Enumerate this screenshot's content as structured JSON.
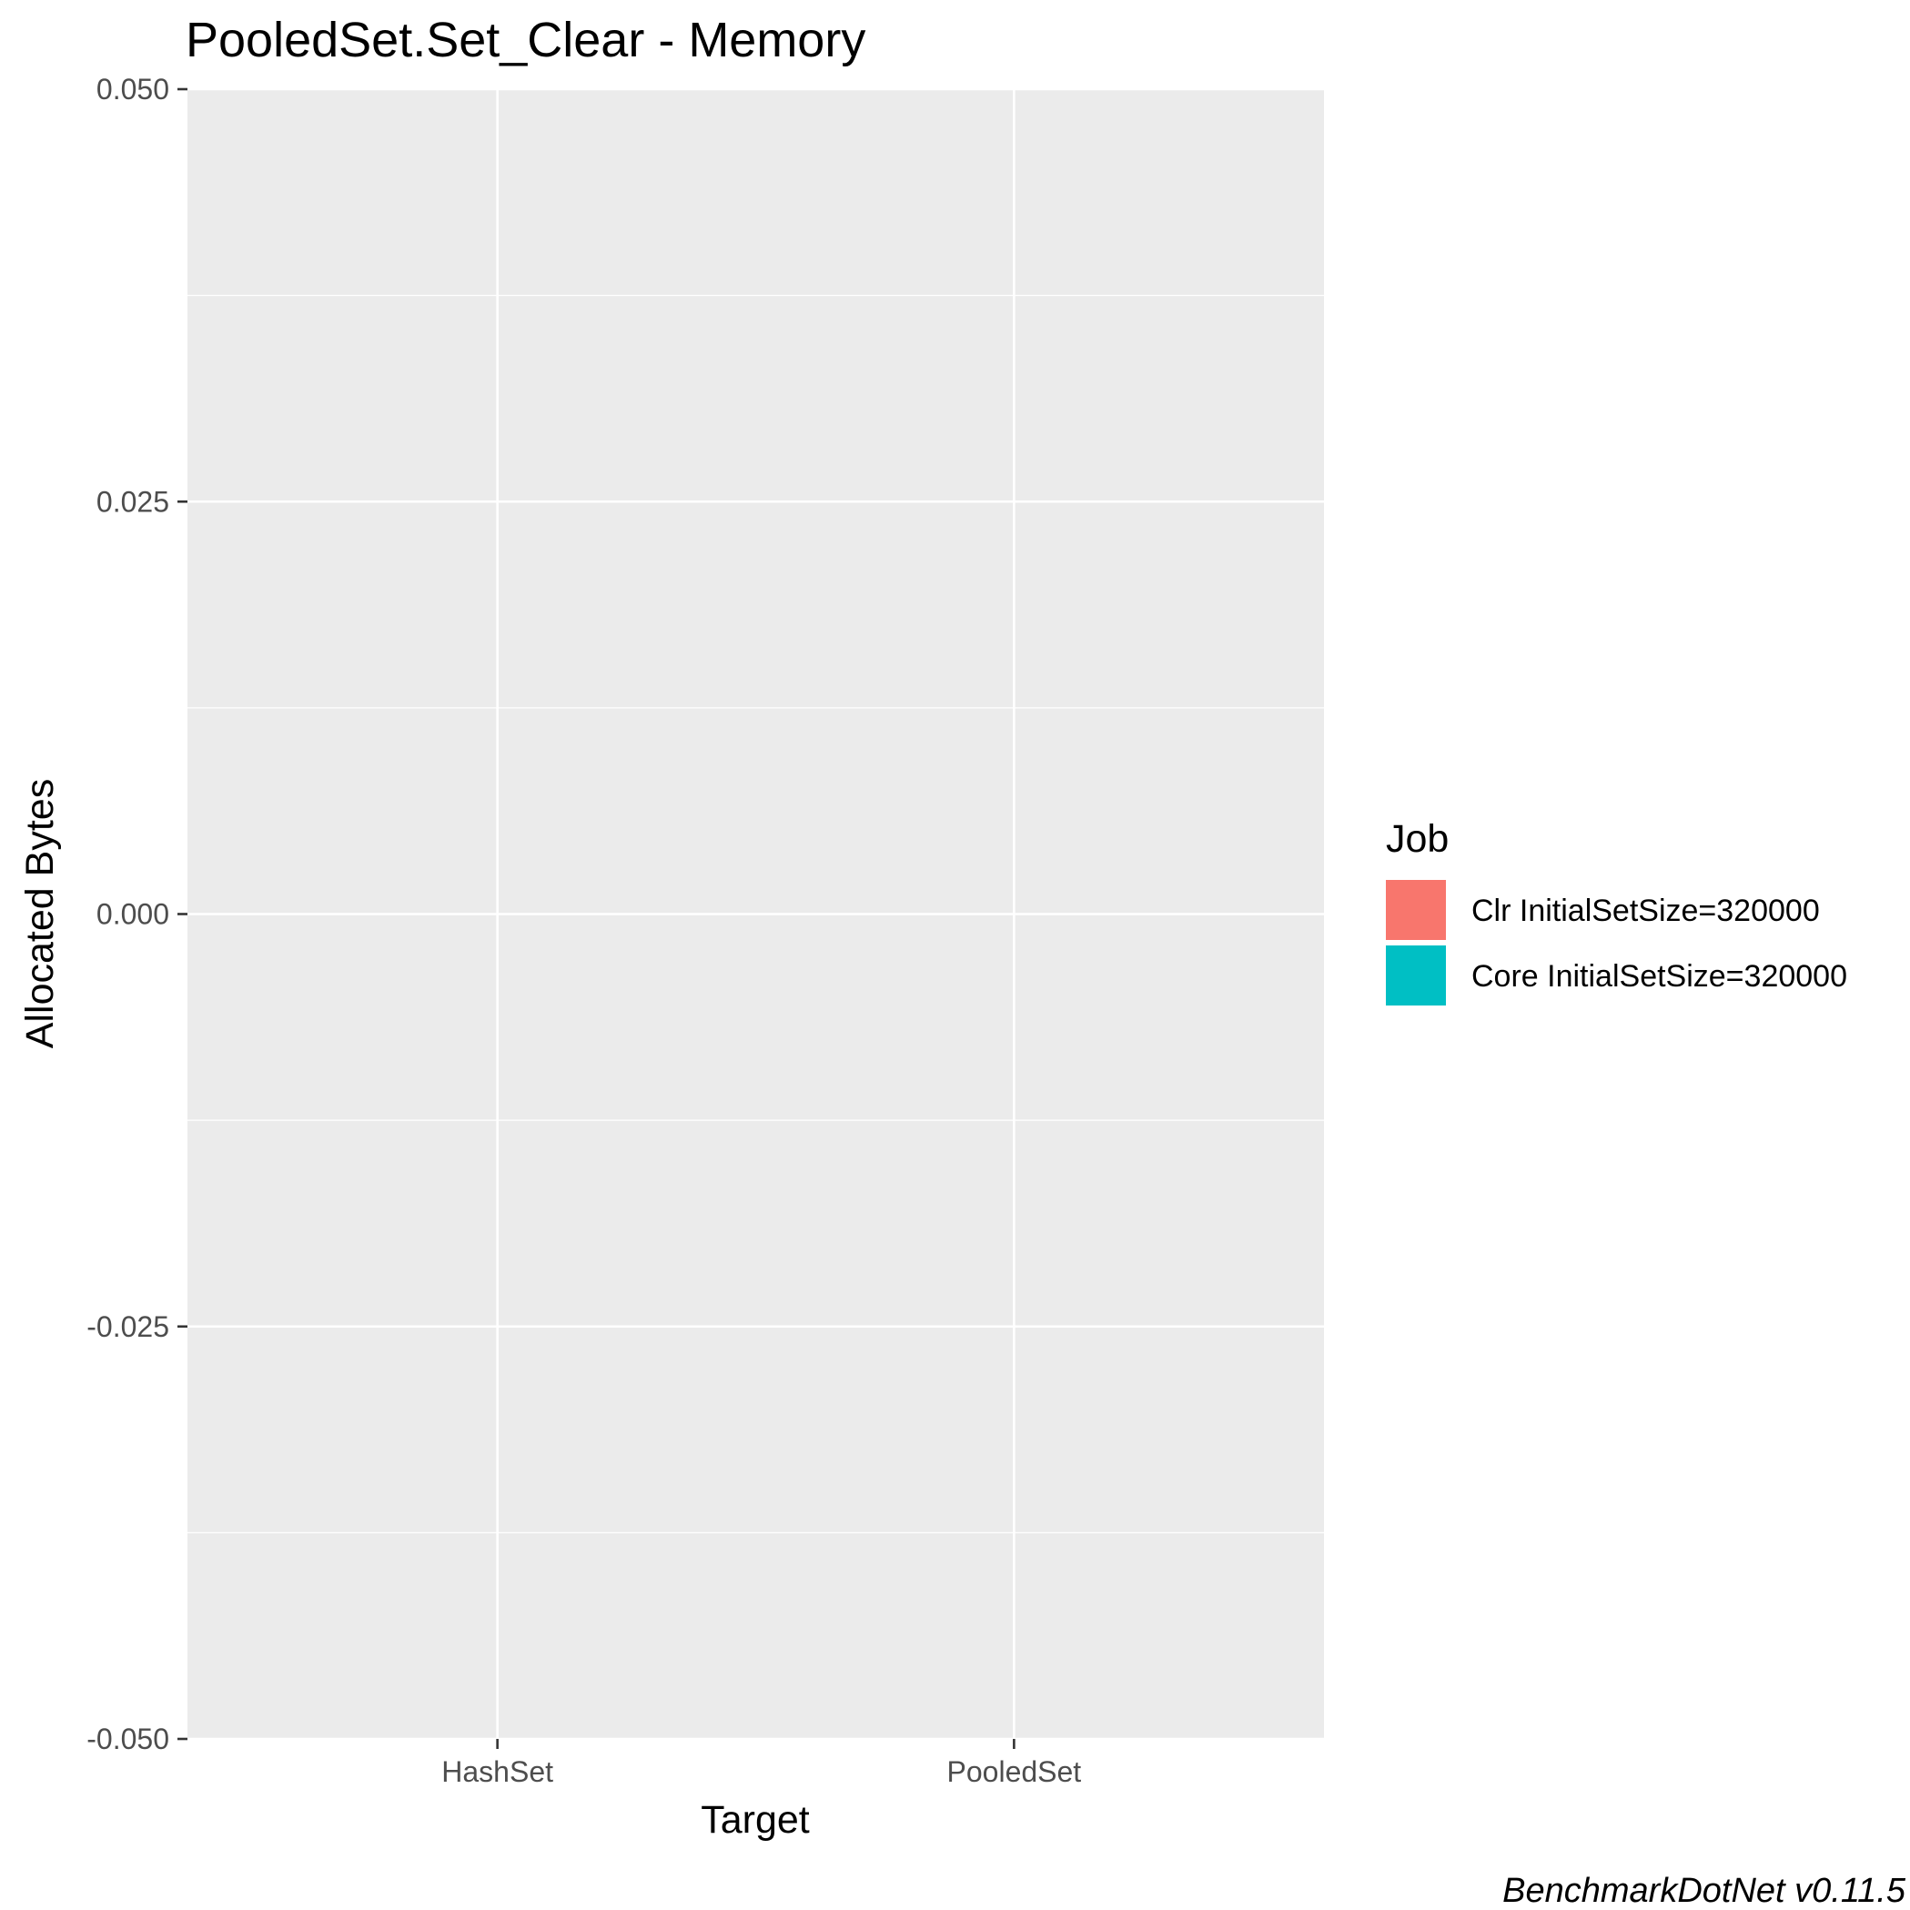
{
  "chart_data": {
    "type": "bar",
    "title": "PooledSet.Set_Clear - Memory",
    "xlabel": "Target",
    "ylabel": "Allocated  Bytes",
    "categories": [
      "HashSet",
      "PooledSet"
    ],
    "series": [
      {
        "name": "Clr InitialSetSize=320000",
        "color": "#F8766D",
        "values": [
          0,
          0
        ]
      },
      {
        "name": "Core InitialSetSize=320000",
        "color": "#00BFC4",
        "values": [
          0,
          0
        ]
      }
    ],
    "ylim": [
      -0.05,
      0.05
    ],
    "y_ticks": [
      {
        "value": -0.05,
        "label": "-0.050"
      },
      {
        "value": -0.025,
        "label": "-0.025"
      },
      {
        "value": 0.0,
        "label": "0.000"
      },
      {
        "value": 0.025,
        "label": "0.025"
      },
      {
        "value": 0.05,
        "label": "0.050"
      }
    ],
    "y_minor_ticks": [
      -0.0375,
      -0.0125,
      0.0125,
      0.0375
    ],
    "grid": true,
    "legend": {
      "title": "Job",
      "placement": "right"
    },
    "caption": "BenchmarkDotNet v0.11.5",
    "panel_background": "#EBEBEB",
    "grid_color": "#FFFFFF"
  }
}
